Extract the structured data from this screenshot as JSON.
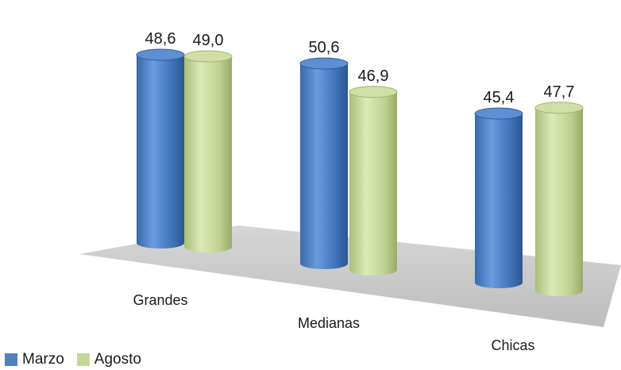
{
  "chart_data": {
    "type": "bar",
    "categories": [
      "Grandes",
      "Medianas",
      "Chicas"
    ],
    "series": [
      {
        "name": "Marzo",
        "values": [
          48.6,
          50.6,
          45.4
        ],
        "color": "#4f81bd"
      },
      {
        "name": "Agosto",
        "values": [
          49.0,
          46.9,
          47.7
        ],
        "color": "#c4d79b"
      }
    ],
    "value_labels": [
      [
        "48,6",
        "50,6",
        "45,4"
      ],
      [
        "49,0",
        "46,9",
        "47,7"
      ]
    ],
    "style": "3d-cylinder",
    "legend_position": "bottom-left",
    "grid": false,
    "title": "",
    "xlabel": "",
    "ylabel": ""
  }
}
